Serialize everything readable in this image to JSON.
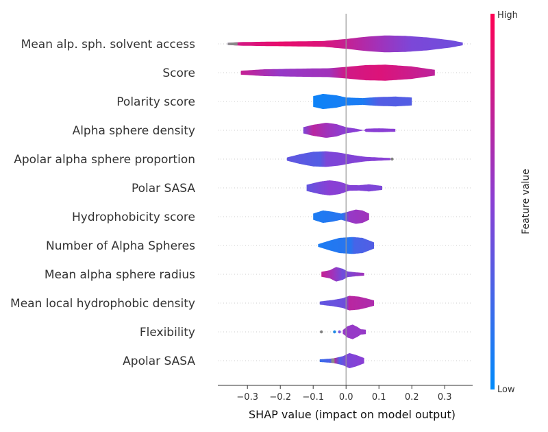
{
  "chart_data": {
    "type": "violin",
    "title": "",
    "xlabel": "SHAP value (impact on model output)",
    "ylabel": "",
    "xlim": [
      -0.39,
      0.385
    ],
    "x_ticks": [
      -0.3,
      -0.2,
      -0.1,
      0.0,
      0.1,
      0.2,
      0.3
    ],
    "x_tick_labels": [
      "−0.3",
      "−0.2",
      "−0.1",
      "0.0",
      "0.1",
      "0.2",
      "0.3"
    ],
    "colorbar": {
      "title": "Feature value",
      "high_label": "High",
      "low_label": "Low",
      "low_color": "#008bfb",
      "mid_color": "#8a3fd4",
      "high_color": "#ff0052"
    },
    "features": [
      {
        "name": "Mean alp. sph. solvent access",
        "range": [
          -0.36,
          0.355
        ],
        "profile": [
          [
            -0.36,
            0.12
          ],
          [
            -0.32,
            0.2
          ],
          [
            -0.25,
            0.24
          ],
          [
            -0.15,
            0.28
          ],
          [
            -0.07,
            0.32
          ],
          [
            0.0,
            0.55
          ],
          [
            0.06,
            0.8
          ],
          [
            0.12,
            0.95
          ],
          [
            0.18,
            0.9
          ],
          [
            0.25,
            0.72
          ],
          [
            0.32,
            0.4
          ],
          [
            0.355,
            0.15
          ]
        ],
        "colors": [
          [
            -0.36,
            0.5
          ],
          [
            -0.34,
            0.8
          ],
          [
            -0.2,
            0.9
          ],
          [
            -0.08,
            0.85
          ],
          [
            0.0,
            0.75
          ],
          [
            0.1,
            0.6
          ],
          [
            0.2,
            0.45
          ],
          [
            0.355,
            0.4
          ]
        ]
      },
      {
        "name": "Score",
        "range": [
          -0.32,
          0.27
        ],
        "profile": [
          [
            -0.32,
            0.22
          ],
          [
            -0.25,
            0.38
          ],
          [
            -0.15,
            0.45
          ],
          [
            -0.05,
            0.5
          ],
          [
            0.0,
            0.65
          ],
          [
            0.06,
            0.85
          ],
          [
            0.12,
            0.9
          ],
          [
            0.2,
            0.7
          ],
          [
            0.27,
            0.32
          ]
        ],
        "colors": [
          [
            -0.32,
            0.75
          ],
          [
            -0.2,
            0.55
          ],
          [
            -0.05,
            0.6
          ],
          [
            0.0,
            0.8
          ],
          [
            0.1,
            0.85
          ],
          [
            0.27,
            0.72
          ]
        ]
      },
      {
        "name": "Polarity score",
        "range": [
          -0.1,
          0.2
        ],
        "profile": [
          [
            -0.1,
            0.6
          ],
          [
            -0.07,
            0.85
          ],
          [
            -0.03,
            0.7
          ],
          [
            0.0,
            0.45
          ],
          [
            0.05,
            0.38
          ],
          [
            0.1,
            0.5
          ],
          [
            0.15,
            0.55
          ],
          [
            0.2,
            0.45
          ]
        ],
        "colors": [
          [
            -0.1,
            0.05
          ],
          [
            0.05,
            0.1
          ],
          [
            0.1,
            0.3
          ],
          [
            0.2,
            0.3
          ]
        ]
      },
      {
        "name": "Alpha sphere density",
        "range": [
          -0.13,
          0.15
        ],
        "profile": [
          [
            -0.13,
            0.35
          ],
          [
            -0.1,
            0.62
          ],
          [
            -0.06,
            0.85
          ],
          [
            -0.03,
            0.7
          ],
          [
            0.0,
            0.35
          ],
          [
            0.03,
            0.18
          ],
          [
            0.055,
            0.0
          ],
          [
            0.06,
            0.18
          ],
          [
            0.1,
            0.22
          ],
          [
            0.15,
            0.16
          ]
        ],
        "colors": [
          [
            -0.13,
            0.45
          ],
          [
            -0.1,
            0.7
          ],
          [
            -0.06,
            0.6
          ],
          [
            0.0,
            0.5
          ],
          [
            0.15,
            0.5
          ]
        ]
      },
      {
        "name": "Apolar alpha sphere proportion",
        "range": [
          -0.18,
          0.135
        ],
        "profile": [
          [
            -0.18,
            0.18
          ],
          [
            -0.14,
            0.55
          ],
          [
            -0.1,
            0.82
          ],
          [
            -0.06,
            0.88
          ],
          [
            -0.02,
            0.72
          ],
          [
            0.02,
            0.45
          ],
          [
            0.06,
            0.25
          ],
          [
            0.1,
            0.18
          ],
          [
            0.135,
            0.12
          ]
        ],
        "colors": [
          [
            -0.18,
            0.35
          ],
          [
            -0.08,
            0.3
          ],
          [
            -0.06,
            0.45
          ],
          [
            0.135,
            0.5
          ]
        ]
      },
      {
        "name": "Polar SASA",
        "range": [
          -0.12,
          0.11
        ],
        "profile": [
          [
            -0.12,
            0.35
          ],
          [
            -0.08,
            0.7
          ],
          [
            -0.05,
            0.85
          ],
          [
            -0.02,
            0.7
          ],
          [
            0.01,
            0.32
          ],
          [
            0.04,
            0.3
          ],
          [
            0.07,
            0.4
          ],
          [
            0.11,
            0.22
          ]
        ],
        "colors": [
          [
            -0.12,
            0.35
          ],
          [
            -0.05,
            0.5
          ],
          [
            0.11,
            0.45
          ]
        ]
      },
      {
        "name": "Hydrophobicity score",
        "range": [
          -0.1,
          0.07
        ],
        "profile": [
          [
            -0.1,
            0.35
          ],
          [
            -0.07,
            0.7
          ],
          [
            -0.04,
            0.55
          ],
          [
            -0.015,
            0.35
          ],
          [
            0.0,
            0.5
          ],
          [
            0.03,
            0.8
          ],
          [
            0.05,
            0.7
          ],
          [
            0.07,
            0.35
          ]
        ],
        "colors": [
          [
            -0.1,
            0.1
          ],
          [
            -0.01,
            0.15
          ],
          [
            0.01,
            0.55
          ],
          [
            0.07,
            0.6
          ]
        ]
      },
      {
        "name": "Number of Alpha Spheres",
        "range": [
          -0.085,
          0.085
        ],
        "profile": [
          [
            -0.085,
            0.15
          ],
          [
            -0.05,
            0.55
          ],
          [
            -0.02,
            0.85
          ],
          [
            0.0,
            0.9
          ],
          [
            0.02,
            0.95
          ],
          [
            0.05,
            0.85
          ],
          [
            0.085,
            0.35
          ]
        ],
        "colors": [
          [
            -0.085,
            0.1
          ],
          [
            0.015,
            0.15
          ],
          [
            0.025,
            0.25
          ],
          [
            0.085,
            0.3
          ]
        ]
      },
      {
        "name": "Mean alpha sphere radius",
        "range": [
          -0.075,
          0.055
        ],
        "profile": [
          [
            -0.075,
            0.28
          ],
          [
            -0.05,
            0.45
          ],
          [
            -0.03,
            0.82
          ],
          [
            -0.01,
            0.62
          ],
          [
            0.005,
            0.32
          ],
          [
            0.03,
            0.22
          ],
          [
            0.055,
            0.15
          ]
        ],
        "colors": [
          [
            -0.075,
            0.75
          ],
          [
            -0.04,
            0.6
          ],
          [
            -0.01,
            0.4
          ],
          [
            0.055,
            0.6
          ]
        ]
      },
      {
        "name": "Mean local hydrophobic density",
        "range": [
          -0.08,
          0.085
        ],
        "profile": [
          [
            -0.08,
            0.18
          ],
          [
            -0.04,
            0.35
          ],
          [
            -0.01,
            0.55
          ],
          [
            0.01,
            0.82
          ],
          [
            0.04,
            0.72
          ],
          [
            0.06,
            0.55
          ],
          [
            0.085,
            0.3
          ]
        ],
        "colors": [
          [
            -0.08,
            0.35
          ],
          [
            0.0,
            0.4
          ],
          [
            0.01,
            0.7
          ],
          [
            0.085,
            0.65
          ]
        ]
      },
      {
        "name": "Flexibility",
        "range": [
          -0.01,
          0.06
        ],
        "profile": [
          [
            -0.01,
            0.2
          ],
          [
            0.005,
            0.65
          ],
          [
            0.02,
            0.82
          ],
          [
            0.035,
            0.55
          ],
          [
            0.045,
            0.3
          ],
          [
            0.06,
            0.25
          ]
        ],
        "colors": [
          [
            -0.01,
            0.55
          ],
          [
            0.06,
            0.55
          ]
        ]
      },
      {
        "name": "Apolar SASA",
        "range": [
          -0.08,
          0.055
        ],
        "profile": [
          [
            -0.08,
            0.15
          ],
          [
            -0.04,
            0.25
          ],
          [
            -0.01,
            0.5
          ],
          [
            0.01,
            0.85
          ],
          [
            0.03,
            0.65
          ],
          [
            0.055,
            0.3
          ]
        ],
        "colors": [
          [
            -0.08,
            0.2
          ],
          [
            -0.045,
            0.3
          ],
          [
            -0.04,
            0.8
          ],
          [
            -0.02,
            0.3
          ],
          [
            0.0,
            0.45
          ],
          [
            0.055,
            0.5
          ]
        ]
      }
    ],
    "outlier_points": [
      {
        "feature": "Apolar alpha sphere proportion",
        "x": 0.14,
        "color": "#808080"
      },
      {
        "feature": "Flexibility",
        "x": -0.075,
        "color": "#808080"
      },
      {
        "feature": "Flexibility",
        "x": -0.035,
        "color": "#1e88e5"
      },
      {
        "feature": "Flexibility",
        "x": -0.02,
        "color": "#7a5ce0"
      }
    ],
    "grey_segments": [
      {
        "feature": "Mean alp. sph. solvent access",
        "from": -0.36,
        "to": -0.33
      },
      {
        "feature": "Apolar SASA",
        "from": -0.045,
        "to": -0.035
      }
    ]
  }
}
